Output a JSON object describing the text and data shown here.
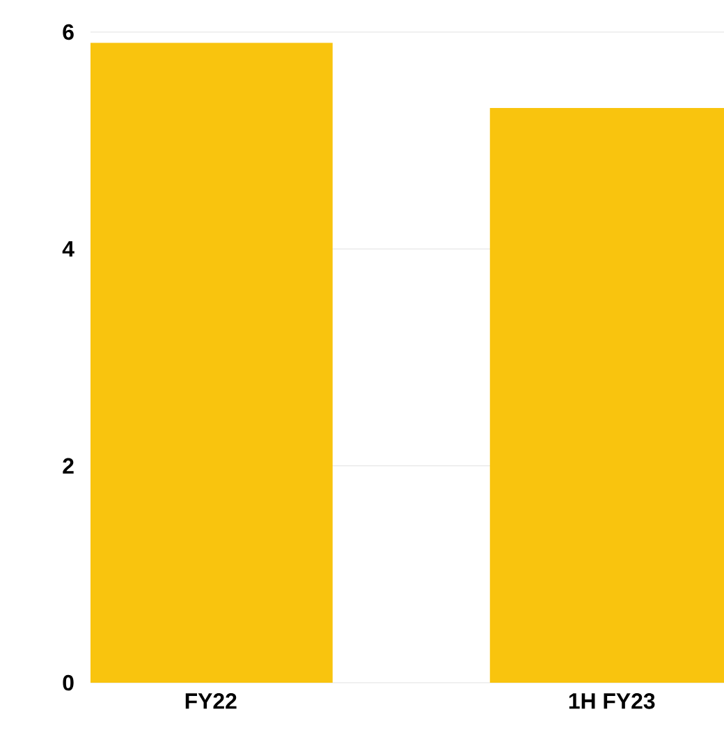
{
  "chart_data": {
    "type": "bar",
    "categories": [
      "FY22",
      "1H FY23"
    ],
    "values": [
      5.9,
      5.3
    ],
    "color": "#f9c40e",
    "ylim": [
      0,
      6
    ],
    "yticks": [
      0,
      2,
      4,
      6
    ],
    "grid": "y"
  }
}
